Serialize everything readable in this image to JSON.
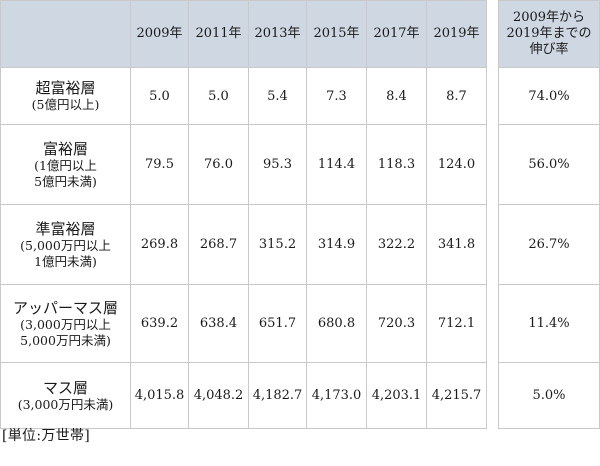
{
  "columns": {
    "years": [
      "2009年",
      "2011年",
      "2013年",
      "2015年",
      "2017年",
      "2019年"
    ],
    "growth_header": [
      "2009年から",
      "2019年までの",
      "伸び率"
    ]
  },
  "rows": [
    {
      "name": "超富裕層",
      "sub": [
        "(5億円以上)"
      ],
      "values": [
        "5.0",
        "5.0",
        "5.4",
        "7.3",
        "8.4",
        "8.7"
      ],
      "growth": "74.0%"
    },
    {
      "name": "富裕層",
      "sub": [
        "(1億円以上",
        "5億円未満)"
      ],
      "values": [
        "79.5",
        "76.0",
        "95.3",
        "114.4",
        "118.3",
        "124.0"
      ],
      "growth": "56.0%"
    },
    {
      "name": "準富裕層",
      "sub": [
        "(5,000万円以上",
        "1億円未満)"
      ],
      "values": [
        "269.8",
        "268.7",
        "315.2",
        "314.9",
        "322.2",
        "341.8"
      ],
      "growth": "26.7%"
    },
    {
      "name": "アッパーマス層",
      "sub": [
        "(3,000万円以上",
        "5,000万円未満)"
      ],
      "values": [
        "639.2",
        "638.4",
        "651.7",
        "680.8",
        "720.3",
        "712.1"
      ],
      "growth": "11.4%"
    },
    {
      "name": "マス層",
      "sub": [
        "(3,000万円未満)"
      ],
      "values": [
        "4,015.8",
        "4,048.2",
        "4,182.7",
        "4,173.0",
        "4,203.1",
        "4,215.7"
      ],
      "growth": "5.0%"
    }
  ],
  "unit_note": "[単位:万世帯]",
  "colors": {
    "header_background": "#cfd7e3",
    "grid_line": "#c9c9c9"
  }
}
